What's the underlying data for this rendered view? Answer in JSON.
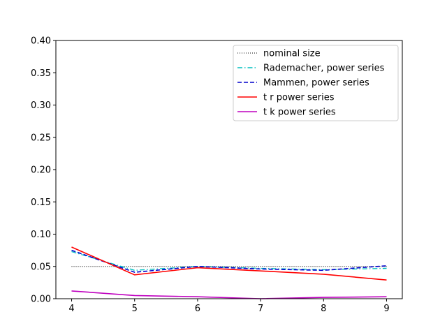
{
  "chart_data": {
    "type": "line",
    "x": [
      4,
      5,
      6,
      7,
      8,
      9
    ],
    "xlim": [
      3.75,
      9.25
    ],
    "ylim": [
      0,
      0.4
    ],
    "xticks": [
      "4",
      "5",
      "6",
      "7",
      "8",
      "9"
    ],
    "yticks": [
      "0.00",
      "0.05",
      "0.10",
      "0.15",
      "0.20",
      "0.25",
      "0.30",
      "0.35",
      "0.40"
    ],
    "grid": false,
    "legend_position": "top-right",
    "series": [
      {
        "name": "nominal size",
        "values": [
          0.05,
          0.05,
          0.05,
          0.05,
          0.05,
          0.05
        ],
        "color": "#000000",
        "style": "dotted"
      },
      {
        "name": "Rademacher, power series",
        "values": [
          0.073,
          0.044,
          0.05,
          0.047,
          0.045,
          0.047
        ],
        "color": "#00bfbf",
        "style": "dashdot"
      },
      {
        "name": "Mammen, power series",
        "values": [
          0.075,
          0.041,
          0.05,
          0.046,
          0.044,
          0.051
        ],
        "color": "#0000cc",
        "style": "dashed"
      },
      {
        "name": "t r power series",
        "values": [
          0.08,
          0.037,
          0.048,
          0.043,
          0.038,
          0.029
        ],
        "color": "#ff0000",
        "style": "solid"
      },
      {
        "name": "t k power series",
        "values": [
          0.012,
          0.005,
          0.003,
          0.0,
          0.002,
          0.003
        ],
        "color": "#bf00bf",
        "style": "solid"
      }
    ]
  }
}
